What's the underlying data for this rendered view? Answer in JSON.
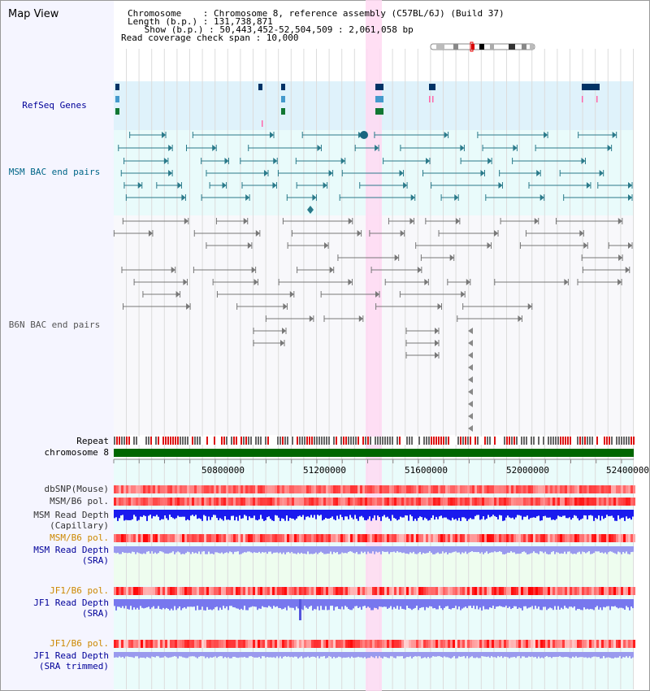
{
  "title": "Map View",
  "header": {
    "chromosome": "Chromosome    : Chromosome 8, reference assembly (C57BL/6J) (Build 37)",
    "length": "Length (b.p.) : 131,738,871",
    "show": " Show (b.p.) : 50,443,452-52,504,509 : 2,061,058 bp",
    "read_coverage": "Read coverage check span : 10,000"
  },
  "tracks": {
    "refseq": "RefSeq Genes",
    "msm_bac": "MSM BAC end pairs",
    "b6n_bac": "B6N BAC end pairs",
    "repeat": "Repeat",
    "chromosome": "chromosome 8",
    "dbsnp": "dbSNP(Mouse)",
    "msm_b6_pol_1": "MSM/B6 pol.",
    "msm_read_depth_cap": "MSM Read Depth",
    "msm_read_depth_cap_sub": "(Capillary)",
    "msm_b6_pol_2": "MSM/B6 pol.",
    "msm_read_depth_sra": "MSM Read Depth",
    "msm_read_depth_sra_sub": "(SRA)",
    "jf1_b6_pol_1": "JF1/B6 pol.",
    "jf1_read_depth_sra": "JF1 Read Depth",
    "jf1_read_depth_sra_sub": "(SRA)",
    "jf1_b6_pol_2": "JF1/B6 pol.",
    "jf1_read_depth_trim": "JF1 Read Depth",
    "jf1_read_depth_trim_sub": "(SRA trimmed)"
  },
  "axis": {
    "ticks": [
      "50800000",
      "51200000",
      "51600000",
      "52000000",
      "52400000"
    ]
  },
  "colors": {
    "refseq_label": "#000099",
    "msm_label": "#006688",
    "b6n_label": "#555555",
    "pol_label": "#cc8800",
    "depth_label": "#000099",
    "highlight": "#ffd9f2",
    "chromosome_bar": "#006600"
  }
}
